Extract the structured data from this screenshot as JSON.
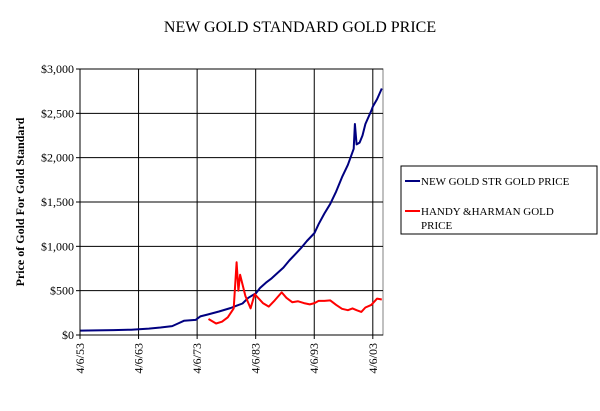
{
  "chart_data": {
    "type": "line",
    "title": "NEW GOLD STANDARD GOLD PRICE",
    "xlabel": "",
    "ylabel": "Price of Gold For Gold Standard",
    "xlim": [
      1953.26,
      2005.0
    ],
    "ylim": [
      0,
      3000
    ],
    "y_ticks": [
      0,
      500,
      1000,
      1500,
      2000,
      2500,
      3000
    ],
    "y_tick_labels": [
      "$0",
      "$500",
      "$1,000",
      "$1,500",
      "$2,000",
      "$2,500",
      "$3,000"
    ],
    "x_ticks": [
      1953.26,
      1963.26,
      1973.26,
      1983.26,
      1993.26,
      2003.26
    ],
    "x_tick_labels": [
      "4/6/53",
      "4/6/63",
      "4/6/73",
      "4/6/83",
      "4/6/93",
      "4/6/03"
    ],
    "grid": true,
    "legend_position": "right",
    "series": [
      {
        "name": "NEW GOLD STR GOLD PRICE",
        "color": "#000080",
        "points": [
          [
            1953.3,
            50
          ],
          [
            1956,
            52
          ],
          [
            1959,
            55
          ],
          [
            1962,
            60
          ],
          [
            1963.3,
            65
          ],
          [
            1965,
            72
          ],
          [
            1967,
            85
          ],
          [
            1969,
            100
          ],
          [
            1970,
            130
          ],
          [
            1971,
            160
          ],
          [
            1973,
            170
          ],
          [
            1973.8,
            210
          ],
          [
            1975,
            230
          ],
          [
            1977,
            265
          ],
          [
            1979,
            305
          ],
          [
            1980,
            330
          ],
          [
            1981,
            355
          ],
          [
            1982,
            420
          ],
          [
            1983.3,
            470
          ],
          [
            1984,
            530
          ],
          [
            1985,
            590
          ],
          [
            1986,
            640
          ],
          [
            1987,
            700
          ],
          [
            1988,
            760
          ],
          [
            1989,
            840
          ],
          [
            1990,
            910
          ],
          [
            1991,
            980
          ],
          [
            1992,
            1060
          ],
          [
            1993.3,
            1150
          ],
          [
            1994,
            1250
          ],
          [
            1995,
            1370
          ],
          [
            1996,
            1480
          ],
          [
            1997,
            1620
          ],
          [
            1998,
            1780
          ],
          [
            1999,
            1920
          ],
          [
            2000,
            2100
          ],
          [
            2000.2,
            2380
          ],
          [
            2000.5,
            2150
          ],
          [
            2001,
            2170
          ],
          [
            2001.5,
            2250
          ],
          [
            2002,
            2380
          ],
          [
            2003,
            2530
          ],
          [
            2003.3,
            2580
          ],
          [
            2004,
            2660
          ],
          [
            2004.8,
            2780
          ]
        ]
      },
      {
        "name": "HANDY &HARMAN GOLD PRICE",
        "color": "#ff0000",
        "points": [
          [
            1975.2,
            180
          ],
          [
            1976.5,
            130
          ],
          [
            1977.5,
            150
          ],
          [
            1978.5,
            200
          ],
          [
            1979.5,
            300
          ],
          [
            1980.0,
            820
          ],
          [
            1980.3,
            500
          ],
          [
            1980.6,
            680
          ],
          [
            1981.5,
            440
          ],
          [
            1982.4,
            300
          ],
          [
            1983.1,
            460
          ],
          [
            1984.5,
            360
          ],
          [
            1985.5,
            320
          ],
          [
            1986.5,
            390
          ],
          [
            1987.7,
            480
          ],
          [
            1988.5,
            420
          ],
          [
            1989.5,
            370
          ],
          [
            1990.5,
            380
          ],
          [
            1991.5,
            360
          ],
          [
            1992.5,
            345
          ],
          [
            1993.3,
            360
          ],
          [
            1994,
            385
          ],
          [
            1995,
            385
          ],
          [
            1996,
            390
          ],
          [
            1997,
            340
          ],
          [
            1998,
            295
          ],
          [
            1999,
            280
          ],
          [
            1999.8,
            300
          ],
          [
            2000.5,
            280
          ],
          [
            2001.3,
            260
          ],
          [
            2002,
            310
          ],
          [
            2003,
            340
          ],
          [
            2004,
            410
          ],
          [
            2004.8,
            400
          ]
        ]
      }
    ]
  }
}
